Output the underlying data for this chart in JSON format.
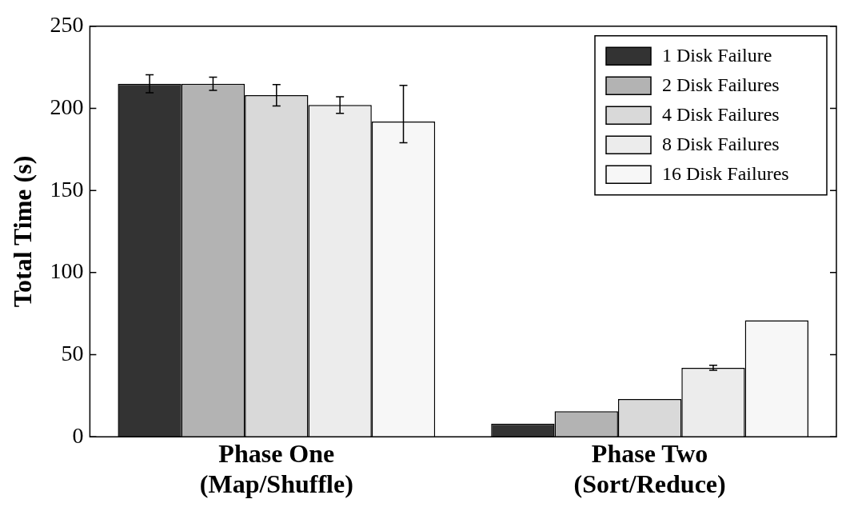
{
  "chart_data": {
    "type": "bar",
    "ylabel": "Total Time (s)",
    "categories": [
      "Phase One\n(Map/Shuffle)",
      "Phase Two\n(Sort/Reduce)"
    ],
    "ylim": [
      0,
      250
    ],
    "yticks": [
      0,
      50,
      100,
      150,
      200,
      250
    ],
    "grid": false,
    "legend": "top right",
    "series": [
      {
        "name": "1 Disk Failure",
        "color": "#333333",
        "values": [
          215,
          8
        ],
        "errors": [
          5.5,
          null
        ]
      },
      {
        "name": "2 Disk Failures",
        "color": "#b3b3b3",
        "values": [
          215,
          15.5
        ],
        "errors": [
          4,
          null
        ]
      },
      {
        "name": "4 Disk Failures",
        "color": "#d9d9d9",
        "values": [
          208,
          23
        ],
        "errors": [
          6.5,
          null
        ]
      },
      {
        "name": "8 Disk Failures",
        "color": "#ececec",
        "values": [
          202,
          42
        ],
        "errors": [
          5,
          1.5
        ]
      },
      {
        "name": "16 Disk Failures",
        "color": "#f7f7f7",
        "values": [
          192,
          71
        ],
        "errors": [
          [
            179,
            214
          ],
          null
        ]
      }
    ]
  }
}
